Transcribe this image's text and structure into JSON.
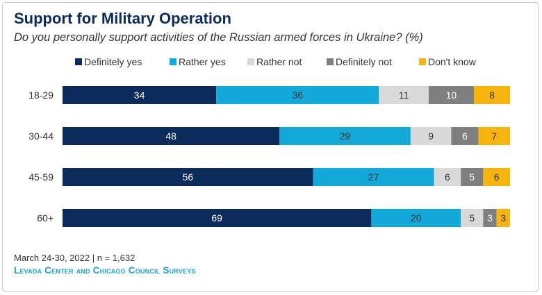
{
  "title": "Support for Military Operation",
  "subtitle": "Do you personally support activities of the Russian armed forces in Ukraine? (%)",
  "footnote": "March 24-30, 2022 | n = 1,632",
  "source": "Levada Center and Chicago Council Surveys",
  "colors": {
    "Definitely yes": "#0b2b5c",
    "Rather yes": "#12a8d8",
    "Rather not": "#d9d9d9",
    "Definitely not": "#7f7f7f",
    "Don't know": "#f6b40e"
  },
  "chart_data": {
    "type": "bar",
    "orientation": "horizontal",
    "stacked": true,
    "legend_position": "top",
    "grid": false,
    "categories": [
      "18-29",
      "30-44",
      "45-59",
      "60+"
    ],
    "series": [
      {
        "name": "Definitely yes",
        "values": [
          34,
          48,
          56,
          69
        ]
      },
      {
        "name": "Rather yes",
        "values": [
          36,
          29,
          27,
          20
        ]
      },
      {
        "name": "Rather not",
        "values": [
          11,
          9,
          6,
          5
        ]
      },
      {
        "name": "Definitely not",
        "values": [
          10,
          6,
          5,
          3
        ]
      },
      {
        "name": "Don't know",
        "values": [
          8,
          7,
          6,
          3
        ]
      }
    ]
  }
}
